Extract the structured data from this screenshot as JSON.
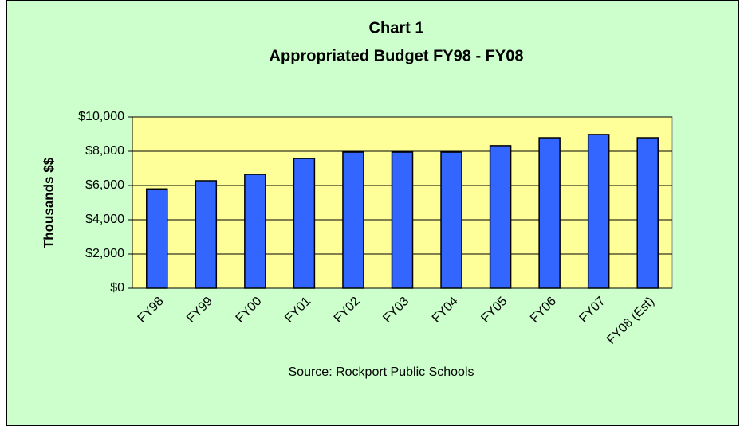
{
  "chart_data": {
    "type": "bar",
    "title": "Chart 1",
    "subtitle": "Appropriated Budget FY98 - FY08",
    "y_label": "Thousands $$",
    "source": "Source: Rockport Public Schools",
    "categories": [
      "FY98",
      "FY99",
      "FY00",
      "FY01",
      "FY02",
      "FY03",
      "FY04",
      "FY05",
      "FY06",
      "FY07",
      "FY08 (Est)"
    ],
    "values": [
      5800,
      6280,
      6650,
      7580,
      7950,
      7950,
      7950,
      8330,
      8790,
      8980,
      8790
    ],
    "color": "#3366ff",
    "ylim": [
      0,
      10000
    ],
    "yticks": [
      {
        "value": 0,
        "label": "$0"
      },
      {
        "value": 2000,
        "label": "$2,000"
      },
      {
        "value": 4000,
        "label": "$4,000"
      },
      {
        "value": 6000,
        "label": "$6,000"
      },
      {
        "value": 8000,
        "label": "$8,000"
      },
      {
        "value": 10000,
        "label": "$10,000"
      }
    ],
    "grid": true
  }
}
